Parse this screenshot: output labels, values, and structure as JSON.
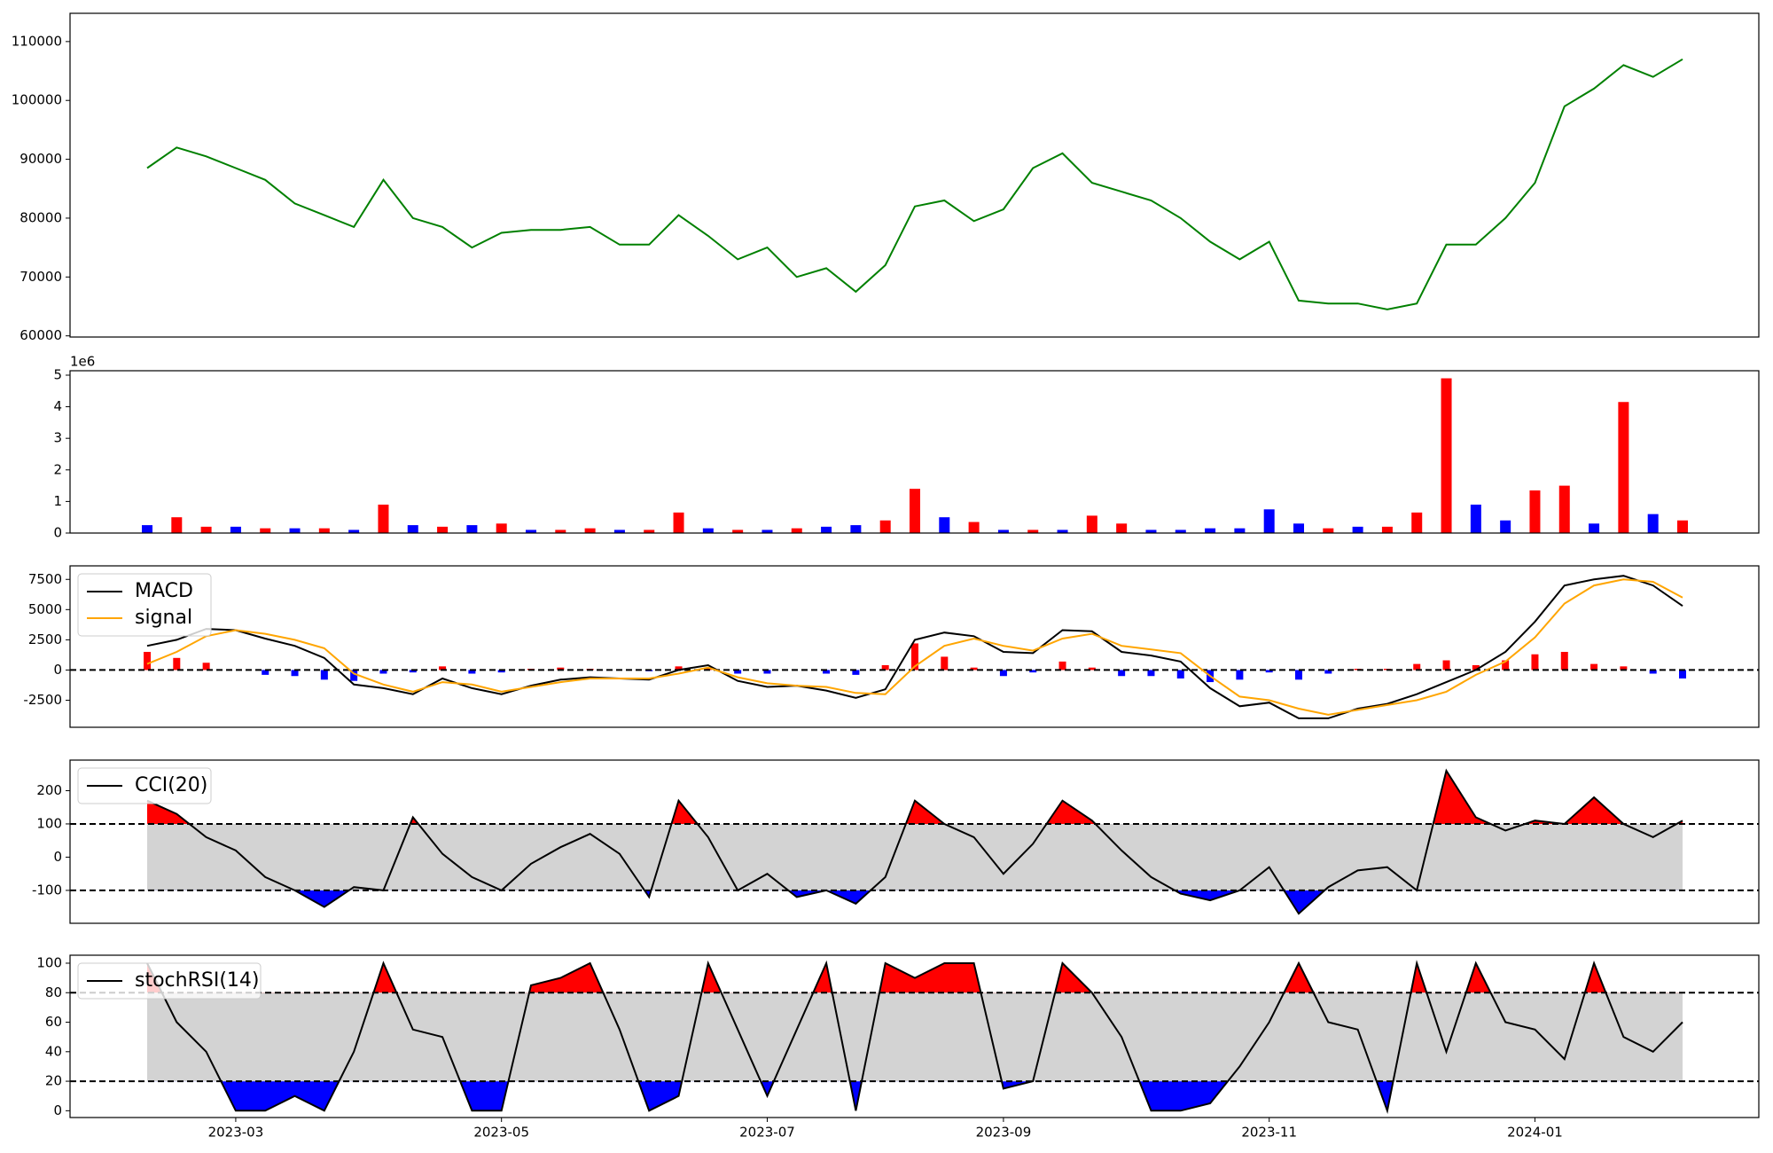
{
  "chart_data": [
    {
      "type": "line",
      "ylim": [
        59800,
        114800
      ],
      "yticks": [
        60000,
        70000,
        80000,
        90000,
        100000,
        110000
      ],
      "series": [
        {
          "color": "#008000",
          "values": [
            88500,
            92000,
            90500,
            88500,
            86500,
            82500,
            80500,
            78500,
            86500,
            80000,
            78500,
            75000,
            77500,
            78000,
            78000,
            78500,
            75500,
            75500,
            80500,
            77000,
            73000,
            75000,
            70000,
            71500,
            67500,
            72000,
            82000,
            83000,
            79500,
            81500,
            88500,
            91000,
            86000,
            84500,
            83000,
            80000,
            76000,
            73000,
            76000,
            66000,
            65500,
            65500,
            64500,
            65500,
            75500,
            75500,
            80000,
            86000,
            99000,
            102000,
            106000,
            104000,
            107000
          ]
        }
      ]
    },
    {
      "type": "bar",
      "offset_label": "1e6",
      "ylim": [
        0,
        5.14
      ],
      "yticks": [
        0,
        1,
        2,
        3,
        4,
        5
      ],
      "series": [
        {
          "values": [
            0.25,
            0.5,
            0.2,
            0.2,
            0.15,
            0.15,
            0.15,
            0.1,
            0.9,
            0.25,
            0.2,
            0.25,
            0.3,
            0.1,
            0.1,
            0.15,
            0.1,
            0.1,
            0.65,
            0.15,
            0.1,
            0.1,
            0.15,
            0.2,
            0.25,
            0.4,
            1.4,
            0.5,
            0.35,
            0.1,
            0.1,
            0.1,
            0.55,
            0.3,
            0.1,
            0.1,
            0.15,
            0.15,
            0.75,
            0.3,
            0.15,
            0.2,
            0.2,
            0.65,
            4.9,
            0.9,
            0.4,
            1.35,
            1.5,
            0.3,
            4.15,
            0.6,
            0.4
          ],
          "colors": [
            "#0000ff",
            "#ff0000",
            "#ff0000",
            "#0000ff",
            "#ff0000",
            "#0000ff",
            "#ff0000",
            "#0000ff",
            "#ff0000",
            "#0000ff",
            "#ff0000",
            "#0000ff",
            "#ff0000",
            "#0000ff",
            "#ff0000",
            "#ff0000",
            "#0000ff",
            "#ff0000",
            "#ff0000",
            "#0000ff",
            "#ff0000",
            "#0000ff",
            "#ff0000",
            "#0000ff",
            "#0000ff",
            "#ff0000",
            "#ff0000",
            "#0000ff",
            "#ff0000",
            "#0000ff",
            "#ff0000",
            "#0000ff",
            "#ff0000",
            "#ff0000",
            "#0000ff",
            "#0000ff",
            "#0000ff",
            "#0000ff",
            "#0000ff",
            "#0000ff",
            "#ff0000",
            "#0000ff",
            "#ff0000",
            "#ff0000",
            "#ff0000",
            "#0000ff",
            "#0000ff",
            "#ff0000",
            "#ff0000",
            "#0000ff",
            "#ff0000",
            "#0000ff",
            "#ff0000"
          ]
        }
      ]
    },
    {
      "type": "macd",
      "ylim": [
        -4740,
        8620
      ],
      "yticks": [
        -2500,
        0,
        2500,
        5000,
        7500
      ],
      "hlines": [
        0
      ],
      "legend": "upper left",
      "series": [
        {
          "name": "MACD",
          "color": "#000000",
          "values": [
            2000,
            2500,
            3400,
            3300,
            2600,
            2000,
            1000,
            -1200,
            -1500,
            -2000,
            -700,
            -1500,
            -2000,
            -1300,
            -800,
            -600,
            -700,
            -800,
            0,
            400,
            -900,
            -1400,
            -1300,
            -1700,
            -2300,
            -1600,
            2500,
            3100,
            2800,
            1500,
            1400,
            3300,
            3200,
            1500,
            1200,
            700,
            -1500,
            -3000,
            -2700,
            -4000,
            -4000,
            -3200,
            -2800,
            -2000,
            -1000,
            0,
            1500,
            4000,
            7000,
            7500,
            7800,
            7000,
            5300
          ]
        },
        {
          "name": "signal",
          "color": "#ffa500",
          "values": [
            500,
            1500,
            2800,
            3300,
            3000,
            2500,
            1800,
            -300,
            -1200,
            -1800,
            -1000,
            -1200,
            -1800,
            -1400,
            -1000,
            -700,
            -700,
            -700,
            -300,
            200,
            -600,
            -1100,
            -1300,
            -1400,
            -1900,
            -2000,
            300,
            2000,
            2600,
            2000,
            1600,
            2600,
            3000,
            2000,
            1700,
            1400,
            -500,
            -2200,
            -2500,
            -3200,
            -3700,
            -3300,
            -2900,
            -2500,
            -1800,
            -400,
            700,
            2700,
            5500,
            7000,
            7500,
            7300,
            6000
          ]
        }
      ],
      "histogram": {
        "up_color": "#ff0000",
        "down_color": "#0000ff",
        "values": [
          1500,
          1000,
          600,
          0,
          -400,
          -500,
          -800,
          -900,
          -300,
          -200,
          300,
          -300,
          -200,
          100,
          200,
          100,
          0,
          -100,
          300,
          200,
          -300,
          -300,
          0,
          -300,
          -400,
          400,
          2200,
          1100,
          200,
          -500,
          -200,
          700,
          200,
          -500,
          -500,
          -700,
          -1000,
          -800,
          -200,
          -800,
          -300,
          100,
          100,
          500,
          800,
          400,
          800,
          1300,
          1500,
          500,
          300,
          -300,
          -700
        ]
      }
    },
    {
      "type": "oscillator",
      "ylim": [
        -199,
        292
      ],
      "yticks": [
        -100,
        0,
        100,
        200
      ],
      "hlines": [
        -100,
        100
      ],
      "legend": "upper left",
      "band_color": "#d3d3d3",
      "upper_color": "#ff0000",
      "lower_color": "#0000ff",
      "series": [
        {
          "name": "CCI(20)",
          "color": "#000000",
          "values": [
            170,
            130,
            60,
            20,
            -60,
            -100,
            -150,
            -90,
            -100,
            120,
            10,
            -60,
            -100,
            -20,
            30,
            70,
            10,
            -120,
            170,
            60,
            -100,
            -50,
            -120,
            -100,
            -140,
            -60,
            170,
            100,
            60,
            -50,
            40,
            170,
            110,
            20,
            -60,
            -110,
            -130,
            -100,
            -30,
            -170,
            -90,
            -40,
            -30,
            -100,
            260,
            120,
            80,
            110,
            100,
            180,
            100,
            60,
            110
          ]
        }
      ]
    },
    {
      "type": "oscillator",
      "ylim": [
        -4.6,
        105.4
      ],
      "yticks": [
        0,
        20,
        40,
        60,
        80,
        100
      ],
      "hlines": [
        20,
        80
      ],
      "legend": "upper left",
      "band_color": "#d3d3d3",
      "upper_color": "#ff0000",
      "lower_color": "#0000ff",
      "categories": [
        null,
        null,
        null,
        "2023-03",
        null,
        null,
        null,
        null,
        null,
        null,
        null,
        null,
        "2023-05",
        null,
        null,
        null,
        null,
        null,
        null,
        null,
        null,
        "2023-07",
        null,
        null,
        null,
        null,
        null,
        null,
        null,
        "2023-09",
        null,
        null,
        null,
        null,
        null,
        null,
        null,
        null,
        "2023-11",
        null,
        null,
        null,
        null,
        null,
        null,
        null,
        null,
        "2024-01",
        null,
        null,
        null,
        null,
        null
      ],
      "series": [
        {
          "name": "stochRSI(14)",
          "color": "#000000",
          "values": [
            100,
            60,
            40,
            0,
            0,
            10,
            0,
            40,
            100,
            55,
            50,
            0,
            0,
            85,
            90,
            100,
            55,
            0,
            10,
            100,
            55,
            10,
            55,
            100,
            0,
            100,
            90,
            100,
            100,
            15,
            20,
            100,
            80,
            50,
            0,
            0,
            5,
            30,
            60,
            100,
            60,
            55,
            0,
            100,
            40,
            100,
            60,
            55,
            35,
            100,
            50,
            40,
            60
          ]
        }
      ]
    }
  ]
}
